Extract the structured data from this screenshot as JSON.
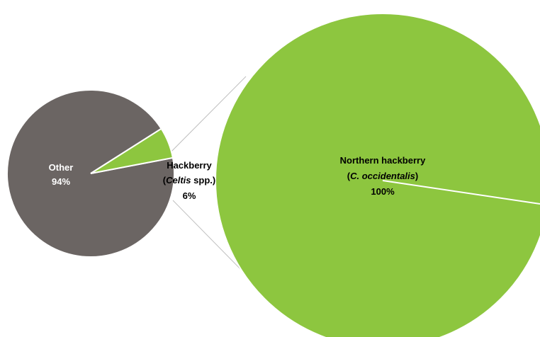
{
  "chart_data": [
    {
      "type": "pie",
      "slices": [
        {
          "label": "Other",
          "value": 94,
          "display": "94%",
          "color": "#6b6563"
        },
        {
          "label_parts": [
            "Hackberry",
            "(",
            "Celtis",
            " spp.)"
          ],
          "value": 6,
          "display": "6%",
          "color": "#8dc63f"
        }
      ]
    },
    {
      "type": "pie",
      "slices": [
        {
          "label_parts": [
            "Northern hackberry",
            "(",
            "C. occidentalis",
            ")"
          ],
          "value": 100,
          "display": "100%",
          "color": "#8dc63f"
        }
      ]
    }
  ]
}
